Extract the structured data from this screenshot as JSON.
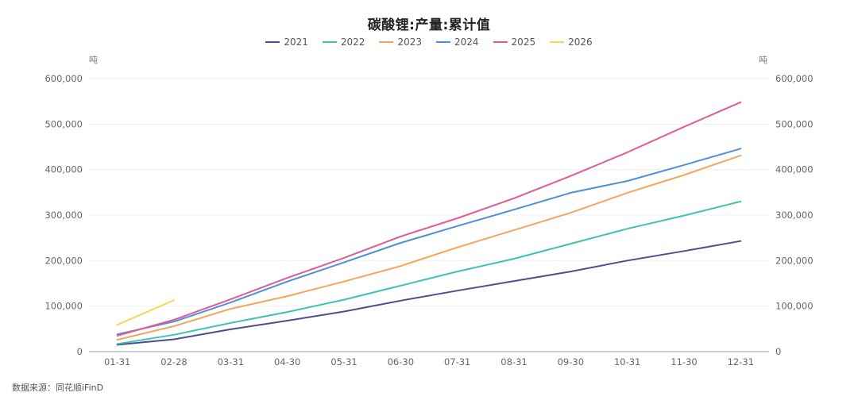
{
  "title": "碳酸锂:产量:累计值",
  "source": "数据来源：同花顺iFinD",
  "left_unit": "吨",
  "right_unit": "吨",
  "legend": [
    {
      "label": "2021",
      "color": "#4b4f8f"
    },
    {
      "label": "2022",
      "color": "#3fc1b4"
    },
    {
      "label": "2023",
      "color": "#f5a55a"
    },
    {
      "label": "2024",
      "color": "#4f8fd6"
    },
    {
      "label": "2025",
      "color": "#df5a9a"
    },
    {
      "label": "2026",
      "color": "#f5d85a"
    }
  ],
  "chart_data": {
    "type": "line",
    "title": "碳酸锂:产量:累计值",
    "xlabel": "",
    "ylabel": "吨",
    "y2label": "吨",
    "ylim": [
      0,
      600000
    ],
    "yticks": [
      0,
      100000,
      200000,
      300000,
      400000,
      500000,
      600000
    ],
    "ytick_labels": [
      "0",
      "100,000",
      "200,000",
      "300,000",
      "400,000",
      "500,000",
      "600,000"
    ],
    "grid": true,
    "legend_position": "top",
    "categories": [
      "01-31",
      "02-28",
      "03-31",
      "04-30",
      "05-31",
      "06-30",
      "07-31",
      "08-31",
      "09-30",
      "10-31",
      "11-30",
      "12-31"
    ],
    "series": [
      {
        "name": "2021",
        "color": "#4b4f8f",
        "values": [
          15000,
          27000,
          49000,
          68000,
          88000,
          112000,
          134000,
          155000,
          176000,
          200000,
          221000,
          243000
        ]
      },
      {
        "name": "2022",
        "color": "#3fc1b4",
        "values": [
          17000,
          37000,
          63000,
          87000,
          114000,
          145000,
          176000,
          204000,
          237000,
          270000,
          299000,
          330000
        ]
      },
      {
        "name": "2023",
        "color": "#f5a55a",
        "values": [
          26000,
          56000,
          94000,
          122000,
          154000,
          188000,
          229000,
          267000,
          305000,
          349000,
          388000,
          431000
        ]
      },
      {
        "name": "2024",
        "color": "#4f8fd6",
        "values": [
          38000,
          66000,
          108000,
          154000,
          196000,
          239000,
          276000,
          312000,
          349000,
          375000,
          410000,
          446000
        ]
      },
      {
        "name": "2025",
        "color": "#df5a9a",
        "values": [
          35000,
          70000,
          115000,
          162000,
          206000,
          253000,
          293000,
          337000,
          386000,
          438000,
          494000,
          548000
        ]
      },
      {
        "name": "2026",
        "color": "#f5d85a",
        "values": [
          59000,
          113000
        ]
      }
    ]
  }
}
